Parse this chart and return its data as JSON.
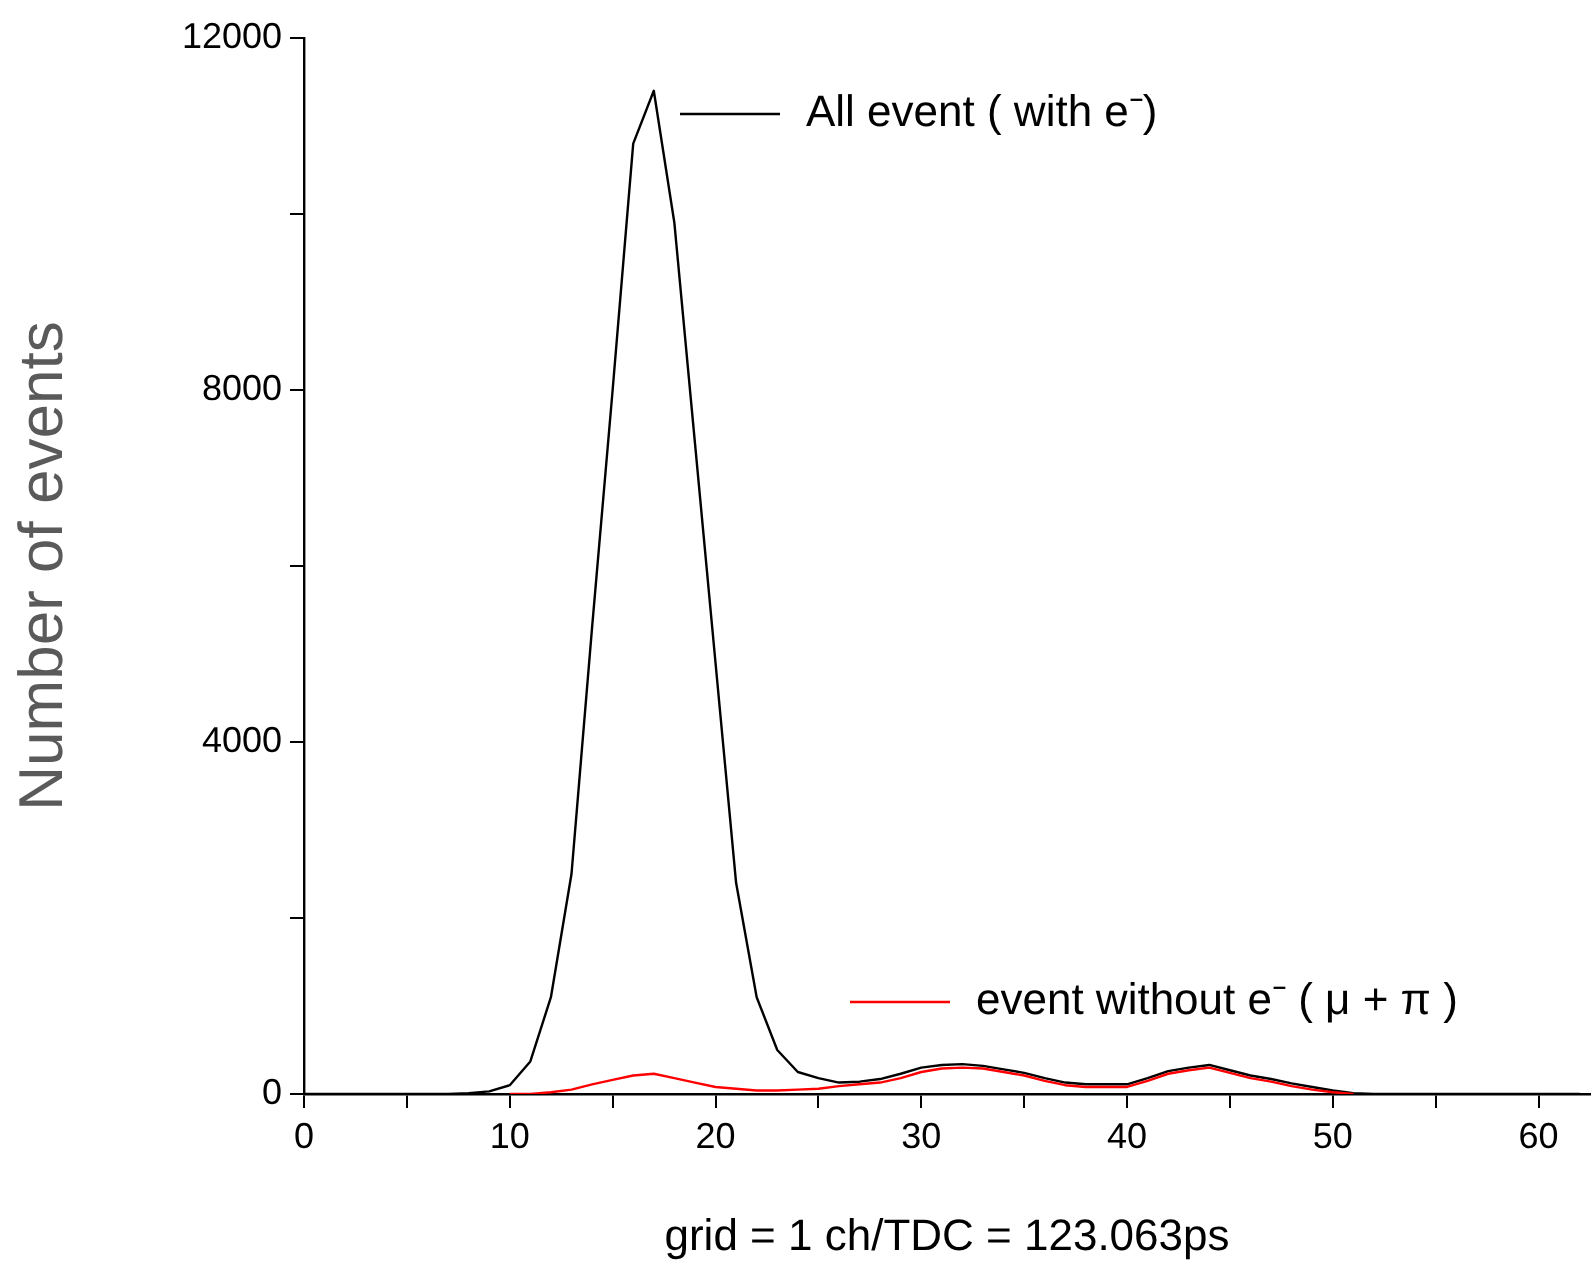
{
  "chart_data": {
    "type": "line",
    "xlabel": "grid = 1 ch/TDC = 123.063ps",
    "ylabel": "Number of events",
    "x": [
      0,
      1,
      2,
      3,
      4,
      5,
      6,
      7,
      8,
      9,
      10,
      11,
      12,
      13,
      14,
      15,
      16,
      17,
      18,
      19,
      20,
      21,
      22,
      23,
      24,
      25,
      26,
      27,
      28,
      29,
      30,
      31,
      32,
      33,
      34,
      35,
      36,
      37,
      38,
      39,
      40,
      41,
      42,
      43,
      44,
      45,
      46,
      47,
      48,
      49,
      50,
      51,
      52,
      53,
      54,
      55,
      56,
      57,
      58,
      59,
      60,
      61,
      62
    ],
    "series": [
      {
        "name": "All event ( with e⁻)",
        "color": "#000000",
        "values": [
          0,
          0,
          0,
          0,
          0,
          0,
          0,
          0,
          10,
          30,
          100,
          370,
          1100,
          2500,
          5300,
          8000,
          10800,
          11400,
          9900,
          7400,
          4900,
          2400,
          1100,
          500,
          250,
          180,
          130,
          140,
          170,
          230,
          300,
          330,
          340,
          320,
          280,
          240,
          180,
          130,
          110,
          110,
          110,
          180,
          260,
          300,
          330,
          270,
          210,
          170,
          120,
          80,
          40,
          10,
          0,
          0,
          0,
          0,
          0,
          0,
          0,
          0,
          0,
          0,
          0
        ]
      },
      {
        "name": "event without e⁻ ( μ + π )",
        "color": "#ff0000",
        "values": [
          null,
          null,
          null,
          null,
          null,
          null,
          null,
          null,
          null,
          null,
          0,
          0,
          20,
          50,
          110,
          160,
          210,
          230,
          180,
          130,
          80,
          60,
          40,
          40,
          50,
          60,
          90,
          110,
          130,
          180,
          250,
          290,
          300,
          290,
          250,
          210,
          150,
          100,
          80,
          80,
          80,
          150,
          230,
          270,
          300,
          240,
          180,
          140,
          90,
          50,
          20,
          0,
          null,
          null,
          null,
          null,
          null,
          null,
          null,
          null,
          null,
          null,
          null
        ]
      }
    ],
    "xlim": [
      0,
      62.5
    ],
    "xticks": [
      0,
      {
        "value": 5,
        "label": null
      },
      10,
      {
        "value": 15,
        "label": null
      },
      20,
      {
        "value": 25,
        "label": null
      },
      30,
      {
        "value": 35,
        "label": null
      },
      40,
      {
        "value": 45,
        "label": null
      },
      50,
      {
        "value": 55,
        "label": null
      },
      60
    ],
    "ylim": [
      0,
      12000
    ],
    "yticks": [
      0,
      {
        "value": 2000,
        "label": null
      },
      4000,
      {
        "value": 6000,
        "label": null
      },
      8000,
      {
        "value": 10000,
        "label": null
      },
      12000
    ],
    "grid": false,
    "legend": "right",
    "marker": "none",
    "line_style": "solid"
  }
}
